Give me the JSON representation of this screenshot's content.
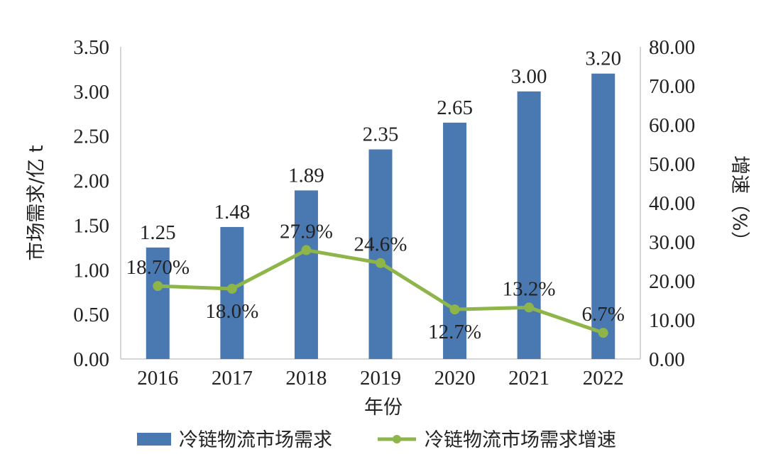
{
  "chart_data": {
    "type": "bar",
    "categories": [
      "2016",
      "2017",
      "2018",
      "2019",
      "2020",
      "2021",
      "2022"
    ],
    "series": [
      {
        "name": "冷链物流市场需求",
        "type": "bar",
        "axis": "left",
        "color": "#4a78b0",
        "values": [
          1.25,
          1.48,
          1.89,
          2.35,
          2.65,
          3.0,
          3.2
        ],
        "labels": [
          "1.25",
          "1.48",
          "1.89",
          "2.35",
          "2.65",
          "3.00",
          "3.20"
        ]
      },
      {
        "name": "冷链物流市场需求增速",
        "type": "line",
        "axis": "right",
        "color": "#8db54a",
        "values": [
          18.7,
          18.0,
          27.9,
          24.6,
          12.7,
          13.2,
          6.7
        ],
        "labels": [
          "18.70%",
          "18.0%",
          "27.9%",
          "24.6%",
          "12.7%",
          "13.2%",
          "6.7%"
        ]
      }
    ],
    "xlabel": "年份",
    "ylabel": "市场需求/亿 t",
    "y2label": "增速（%）",
    "ylim": [
      0,
      3.5
    ],
    "y2lim": [
      0,
      80
    ],
    "yticks": [
      "0.00",
      "0.50",
      "1.00",
      "1.50",
      "2.00",
      "2.50",
      "3.00",
      "3.50"
    ],
    "y2ticks": [
      "0.00",
      "10.00",
      "20.00",
      "30.00",
      "40.00",
      "50.00",
      "60.00",
      "70.00",
      "80.00"
    ],
    "grid": false,
    "legend_position": "bottom"
  }
}
